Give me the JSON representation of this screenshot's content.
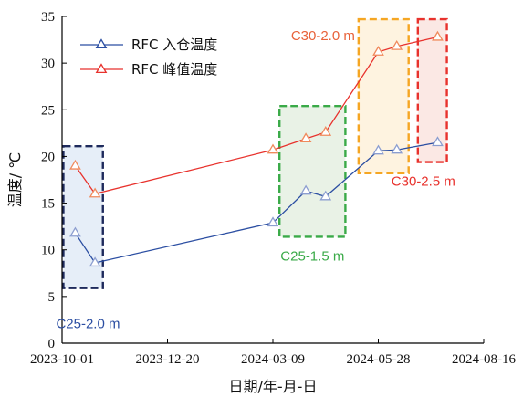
{
  "chart_data": {
    "type": "line",
    "title": "",
    "xlabel": "日期/年-月-日",
    "ylabel": "温度/ ℃",
    "x_tick_labels": [
      "2023-10-01",
      "2023-12-20",
      "2024-03-09",
      "2024-05-28",
      "2024-08-16"
    ],
    "xlim": [
      "2023-10-01",
      "2024-08-16"
    ],
    "ylim": [
      0,
      35
    ],
    "y_ticks": [
      0,
      5,
      10,
      15,
      20,
      25,
      30,
      35
    ],
    "grid": false,
    "legend_position": "top-left",
    "series": [
      {
        "name": "RFC 入仓温度",
        "color": "#2b4ea2",
        "marker": "triangle-open",
        "marker_color": "#8c9ed0",
        "points": [
          {
            "x": "2023-10-11",
            "y": 11.8
          },
          {
            "x": "2023-10-26",
            "y": 8.6
          },
          {
            "x": "2024-03-09",
            "y": 12.9
          },
          {
            "x": "2024-04-03",
            "y": 16.3
          },
          {
            "x": "2024-04-18",
            "y": 15.7
          },
          {
            "x": "2024-05-28",
            "y": 20.6
          },
          {
            "x": "2024-06-11",
            "y": 20.7
          },
          {
            "x": "2024-07-12",
            "y": 21.5
          }
        ]
      },
      {
        "name": "RFC 峰值温度",
        "color": "#e8322d",
        "marker": "triangle-open",
        "marker_color": "#f08a5c",
        "points": [
          {
            "x": "2023-10-11",
            "y": 19.0
          },
          {
            "x": "2023-10-26",
            "y": 16.0
          },
          {
            "x": "2024-03-09",
            "y": 20.7
          },
          {
            "x": "2024-04-03",
            "y": 21.9
          },
          {
            "x": "2024-04-18",
            "y": 22.6
          },
          {
            "x": "2024-05-28",
            "y": 31.2
          },
          {
            "x": "2024-06-11",
            "y": 31.8
          },
          {
            "x": "2024-07-12",
            "y": 32.8
          }
        ]
      }
    ],
    "regions": [
      {
        "label": "C25-2.0 m",
        "x0": "2023-10-02",
        "x1": "2023-11-01",
        "y0": 5.9,
        "y1": 21.1,
        "border": "#1e2a5c",
        "fill": "#e6eef8",
        "label_color": "#2b4ea2",
        "label_side": "below"
      },
      {
        "label": "C25-1.5 m",
        "x0": "2024-03-14",
        "x1": "2024-05-03",
        "y0": 11.4,
        "y1": 25.4,
        "border": "#3aaa48",
        "fill": "#e9f2e6",
        "label_color": "#3aaa48",
        "label_side": "below"
      },
      {
        "label": "C30-2.0 m",
        "x0": "2024-05-13",
        "x1": "2024-06-20",
        "y0": 18.2,
        "y1": 34.7,
        "border": "#f5a623",
        "fill": "#fef3e0",
        "label_color": "#e8623a",
        "label_side": "left"
      },
      {
        "label": "C30-2.5 m",
        "x0": "2024-06-27",
        "x1": "2024-07-19",
        "y0": 19.4,
        "y1": 34.7,
        "border": "#e8322d",
        "fill": "#fbe8e4",
        "label_color": "#e8322d",
        "label_side": "below"
      }
    ]
  }
}
